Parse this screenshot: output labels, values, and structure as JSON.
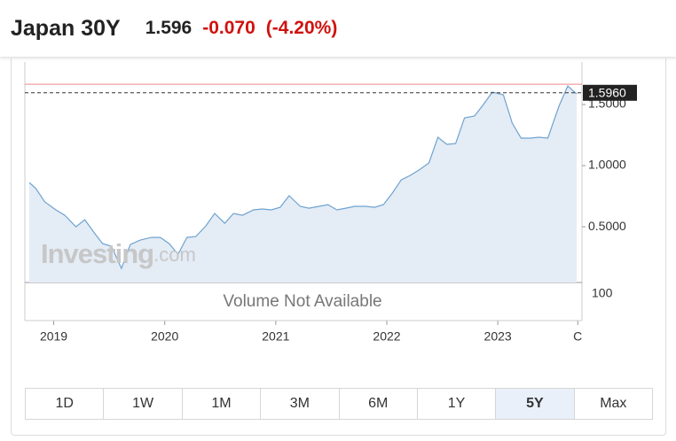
{
  "header": {
    "title": "Japan 30Y",
    "price": "1.596",
    "change": "-0.070",
    "change_percent": "(-4.20%)"
  },
  "chart_data": {
    "type": "area",
    "color": "#6fa3cf",
    "fill": "#e4ecf6",
    "x": [
      2018.78,
      2018.84,
      2018.92,
      2019.02,
      2019.1,
      2019.2,
      2019.28,
      2019.36,
      2019.44,
      2019.52,
      2019.61,
      2019.69,
      2019.78,
      2019.88,
      2019.96,
      2020.04,
      2020.12,
      2020.2,
      2020.28,
      2020.37,
      2020.45,
      2020.54,
      2020.62,
      2020.7,
      2020.8,
      2020.88,
      2020.96,
      2021.04,
      2021.12,
      2021.22,
      2021.3,
      2021.39,
      2021.47,
      2021.55,
      2021.63,
      2021.71,
      2021.81,
      2021.89,
      2021.97,
      2022.05,
      2022.13,
      2022.21,
      2022.29,
      2022.38,
      2022.46,
      2022.54,
      2022.62,
      2022.7,
      2022.79,
      2022.87,
      2022.95,
      2023.05,
      2023.13,
      2023.21,
      2023.29,
      2023.37,
      2023.45,
      2023.55,
      2023.63,
      2023.71
    ],
    "values": [
      0.862,
      0.812,
      0.703,
      0.638,
      0.594,
      0.5,
      0.558,
      0.457,
      0.362,
      0.341,
      0.159,
      0.355,
      0.391,
      0.413,
      0.413,
      0.362,
      0.275,
      0.413,
      0.42,
      0.507,
      0.609,
      0.529,
      0.609,
      0.594,
      0.638,
      0.645,
      0.638,
      0.659,
      0.754,
      0.667,
      0.652,
      0.667,
      0.681,
      0.638,
      0.652,
      0.667,
      0.667,
      0.659,
      0.681,
      0.775,
      0.884,
      0.92,
      0.964,
      1.022,
      1.232,
      1.174,
      1.181,
      1.391,
      1.406,
      1.5,
      1.601,
      1.58,
      1.348,
      1.225,
      1.225,
      1.232,
      1.225,
      1.486,
      1.652,
      1.587
    ],
    "xlim": [
      2018.74,
      2023.75
    ],
    "ylim": [
      0.044,
      1.848
    ],
    "xticks": [
      2019,
      2020,
      2021,
      2022,
      2023,
      {
        "value": 2023.72,
        "label": "C"
      }
    ],
    "yticks": [
      {
        "value": 0.5,
        "label": "0.5000"
      },
      {
        "value": 1,
        "label": "1.0000"
      },
      {
        "value": 1.5,
        "label": "1.5000"
      }
    ],
    "last_price": {
      "value": 1.596,
      "label": "1.5960"
    },
    "prev_close": 1.666,
    "watermark": {
      "brand": "Investing",
      "suffix": ".com"
    },
    "volume_pane": {
      "message": "Volume Not Available",
      "yticks": [
        100
      ]
    }
  },
  "range_buttons": [
    "1D",
    "1W",
    "1M",
    "3M",
    "6M",
    "1Y",
    "5Y",
    "Max"
  ],
  "active_range_index": 6
}
